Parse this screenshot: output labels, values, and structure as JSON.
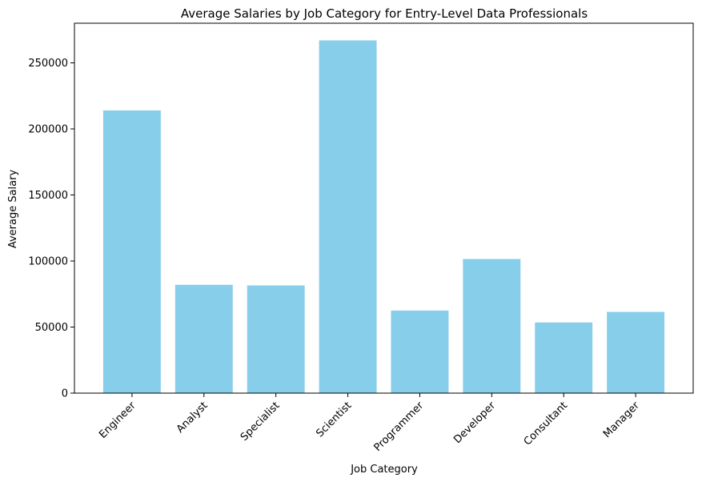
{
  "chart_data": {
    "type": "bar",
    "title": "Average Salaries by Job Category for Entry-Level Data Professionals",
    "xlabel": "Job Category",
    "ylabel": "Average Salary",
    "categories": [
      "Engineer",
      "Analyst",
      "Specialist",
      "Scientist",
      "Programmer",
      "Developer",
      "Consultant",
      "Manager"
    ],
    "values": [
      214000,
      82000,
      81500,
      267000,
      62500,
      101500,
      53500,
      61500
    ],
    "ylim": [
      0,
      280000
    ],
    "yticks": [
      0,
      50000,
      100000,
      150000,
      200000,
      250000
    ],
    "ytick_labels": [
      "0",
      "50000",
      "100000",
      "150000",
      "200000",
      "250000"
    ],
    "grid": false,
    "bar_color": "#87ceeb",
    "xtick_rotation_deg": 45
  }
}
